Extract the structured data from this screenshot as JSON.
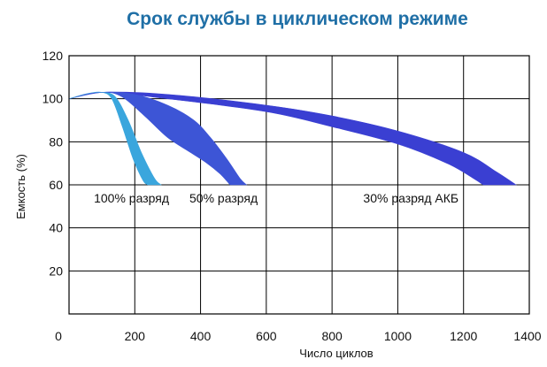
{
  "chart_data": {
    "type": "area",
    "title": "Срок службы в циклическом режиме",
    "xlabel": "Число циклов",
    "ylabel": "Емкость (%)",
    "xlim": [
      0,
      1400
    ],
    "ylim": [
      0,
      120
    ],
    "x_ticks": [
      "0",
      "200",
      "400",
      "600",
      "800",
      "1000",
      "1200",
      "1400"
    ],
    "y_ticks": [
      "20",
      "40",
      "60",
      "80",
      "100",
      "120"
    ],
    "grid": true,
    "series": [
      {
        "name": "100% разряд",
        "color": "#3aa6dd",
        "upper": [
          [
            0,
            100
          ],
          [
            60,
            102.5
          ],
          [
            100,
            103
          ],
          [
            140,
            101
          ],
          [
            180,
            90
          ],
          [
            220,
            75
          ],
          [
            260,
            63
          ],
          [
            280,
            60
          ]
        ],
        "lower": [
          [
            0,
            100
          ],
          [
            60,
            102.5
          ],
          [
            100,
            103
          ],
          [
            130,
            100
          ],
          [
            160,
            88
          ],
          [
            195,
            72
          ],
          [
            225,
            62
          ],
          [
            240,
            60
          ]
        ]
      },
      {
        "name": "50% разряд",
        "color": "#3d55d6",
        "upper": [
          [
            0,
            100
          ],
          [
            100,
            103
          ],
          [
            200,
            102
          ],
          [
            300,
            97
          ],
          [
            380,
            90
          ],
          [
            430,
            82
          ],
          [
            480,
            72
          ],
          [
            520,
            63
          ],
          [
            540,
            60
          ]
        ],
        "lower": [
          [
            0,
            100
          ],
          [
            100,
            103
          ],
          [
            160,
            101
          ],
          [
            230,
            92
          ],
          [
            300,
            82
          ],
          [
            370,
            75
          ],
          [
            420,
            70
          ],
          [
            460,
            65
          ],
          [
            490,
            60
          ]
        ]
      },
      {
        "name": "30% разряд АКБ",
        "color": "#3a3fd2",
        "upper": [
          [
            0,
            100
          ],
          [
            100,
            103
          ],
          [
            300,
            102
          ],
          [
            600,
            97
          ],
          [
            800,
            92
          ],
          [
            1000,
            85
          ],
          [
            1200,
            75
          ],
          [
            1300,
            66
          ],
          [
            1360,
            60
          ]
        ],
        "lower": [
          [
            0,
            100
          ],
          [
            100,
            103
          ],
          [
            300,
            100
          ],
          [
            600,
            94
          ],
          [
            800,
            87
          ],
          [
            1000,
            79
          ],
          [
            1150,
            70
          ],
          [
            1230,
            63
          ],
          [
            1260,
            60
          ]
        ]
      }
    ],
    "annotations": [
      {
        "text": "100% разряд",
        "x": 190,
        "y": 55
      },
      {
        "text": "50% разряд",
        "x": 470,
        "y": 55
      },
      {
        "text": "30% разряд АКБ",
        "x": 1040,
        "y": 55
      }
    ]
  }
}
